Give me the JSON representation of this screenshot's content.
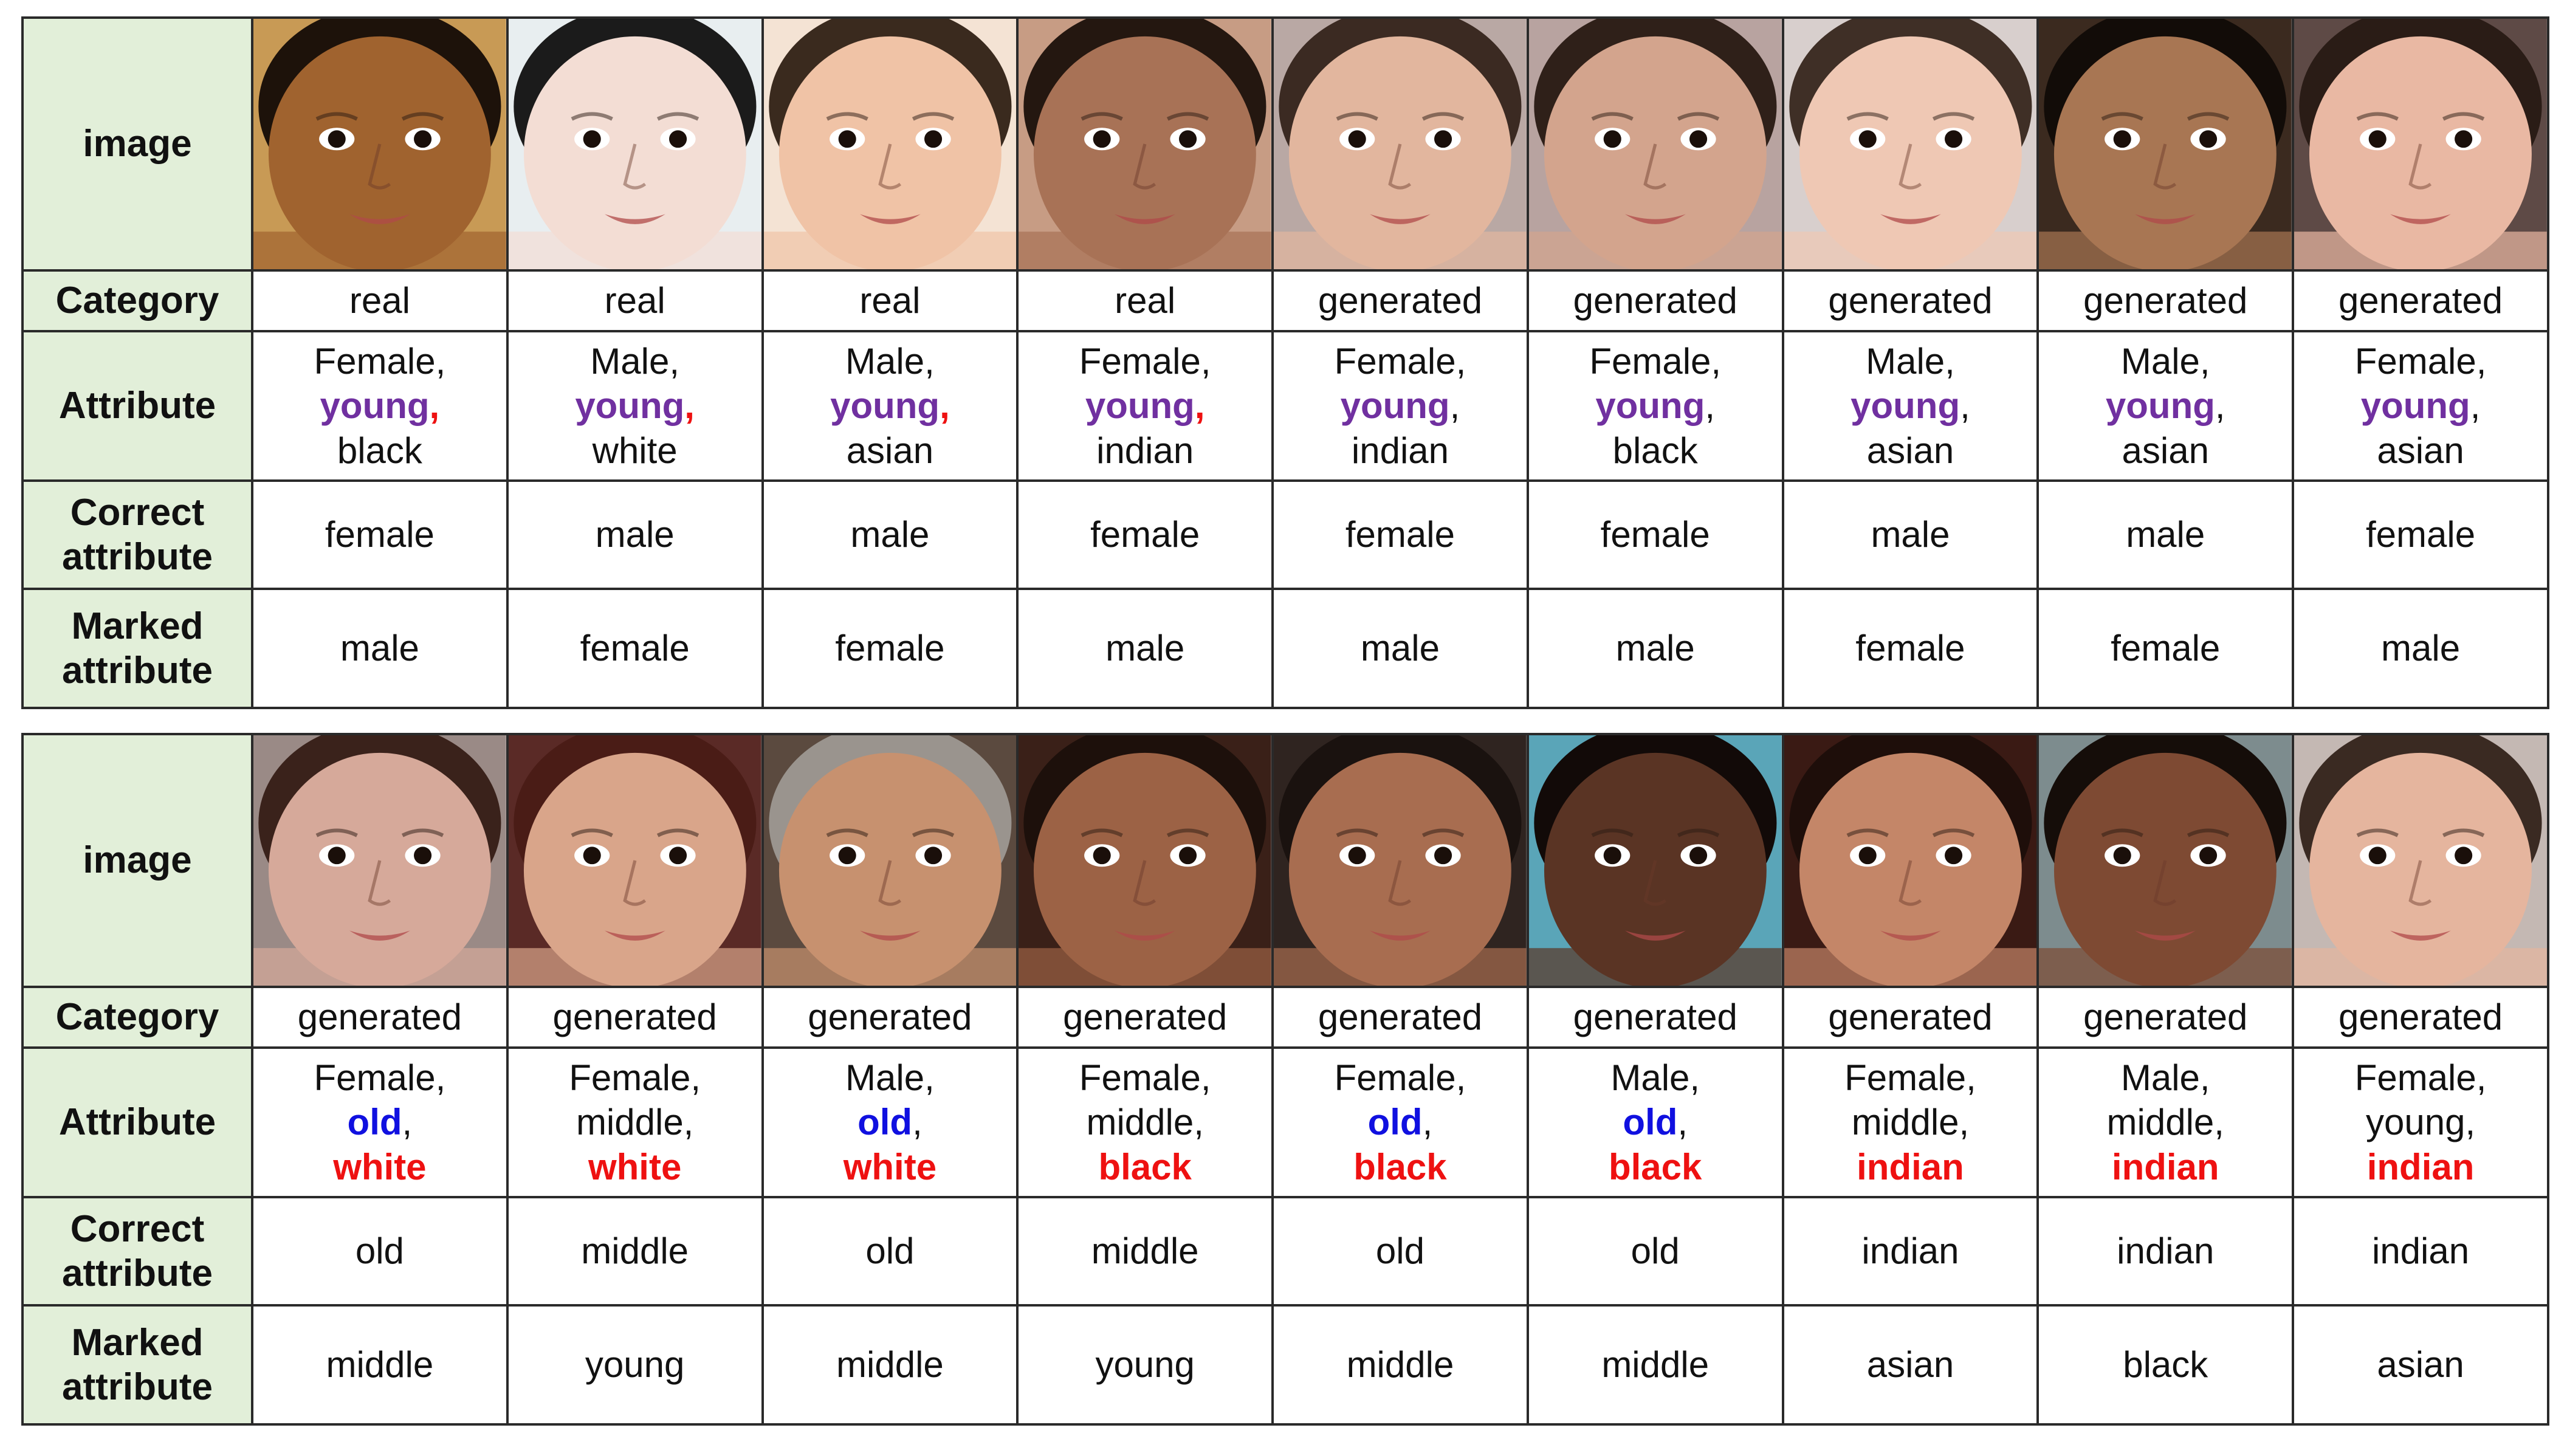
{
  "row_headers": {
    "image": "image",
    "category": "Category",
    "attribute": "Attribute",
    "correct": [
      "Correct",
      "attribute"
    ],
    "marked": [
      "Marked",
      "attribute"
    ]
  },
  "colors": {
    "header_bg": "#e2efd9",
    "purple": "#7030a0",
    "blue": "#1010e0",
    "red": "#ee1111"
  },
  "tables": [
    {
      "columns": [
        {
          "image": "face-photo",
          "skin": "#a0632f",
          "bg": "#c89a55",
          "hair": "#1d120a",
          "category": "real",
          "attribute": [
            {
              "text": "Female,",
              "style": "plain"
            },
            {
              "parts": [
                {
                  "text": "young",
                  "style": "purple"
                },
                {
                  "text": ",",
                  "style": "red"
                }
              ]
            },
            {
              "text": "black",
              "style": "plain"
            }
          ],
          "correct": "female",
          "marked": "male"
        },
        {
          "image": "face-photo",
          "skin": "#f3ddd4",
          "bg": "#e8eef0",
          "hair": "#1b1b1b",
          "category": "real",
          "attribute": [
            {
              "text": "Male,",
              "style": "plain"
            },
            {
              "parts": [
                {
                  "text": "young",
                  "style": "purple"
                },
                {
                  "text": ",",
                  "style": "red"
                }
              ]
            },
            {
              "text": "white",
              "style": "plain"
            }
          ],
          "correct": "male",
          "marked": "female"
        },
        {
          "image": "face-photo",
          "skin": "#f0c3a6",
          "bg": "#f4e3d4",
          "hair": "#3a2a1e",
          "category": "real",
          "attribute": [
            {
              "text": "Male,",
              "style": "plain"
            },
            {
              "parts": [
                {
                  "text": "young",
                  "style": "purple"
                },
                {
                  "text": ",",
                  "style": "red"
                }
              ]
            },
            {
              "text": "asian",
              "style": "plain"
            }
          ],
          "correct": "male",
          "marked": "female"
        },
        {
          "image": "face-photo",
          "skin": "#a87256",
          "bg": "#c79c84",
          "hair": "#241710",
          "category": "real",
          "attribute": [
            {
              "text": "Female,",
              "style": "plain"
            },
            {
              "parts": [
                {
                  "text": "young",
                  "style": "purple"
                },
                {
                  "text": ",",
                  "style": "red"
                }
              ]
            },
            {
              "text": "indian",
              "style": "plain"
            }
          ],
          "correct": "female",
          "marked": "male"
        },
        {
          "image": "face-photo",
          "skin": "#e2b69e",
          "bg": "#b9a8a4",
          "hair": "#3b2a22",
          "category": "generated",
          "attribute": [
            {
              "text": "Female,",
              "style": "plain"
            },
            {
              "parts": [
                {
                  "text": "young",
                  "style": "purple"
                },
                {
                  "text": ",",
                  "style": "plain"
                }
              ]
            },
            {
              "text": "indian",
              "style": "plain"
            }
          ],
          "correct": "female",
          "marked": "male"
        },
        {
          "image": "face-photo",
          "skin": "#d3a48d",
          "bg": "#b8a3a0",
          "hair": "#2f2019",
          "category": "generated",
          "attribute": [
            {
              "text": "Female,",
              "style": "plain"
            },
            {
              "parts": [
                {
                  "text": "young",
                  "style": "purple"
                },
                {
                  "text": ",",
                  "style": "plain"
                }
              ]
            },
            {
              "text": "black",
              "style": "plain"
            }
          ],
          "correct": "female",
          "marked": "male"
        },
        {
          "image": "face-photo",
          "skin": "#efc8b4",
          "bg": "#d8cfcd",
          "hair": "#3f2f26",
          "category": "generated",
          "attribute": [
            {
              "text": "Male,",
              "style": "plain"
            },
            {
              "parts": [
                {
                  "text": "young",
                  "style": "purple"
                },
                {
                  "text": ",",
                  "style": "plain"
                }
              ]
            },
            {
              "text": "asian",
              "style": "plain"
            }
          ],
          "correct": "male",
          "marked": "female"
        },
        {
          "image": "face-photo",
          "skin": "#a87653",
          "bg": "#3b2a1f",
          "hair": "#120c08",
          "category": "generated",
          "attribute": [
            {
              "text": "Male,",
              "style": "plain"
            },
            {
              "parts": [
                {
                  "text": "young",
                  "style": "purple"
                },
                {
                  "text": ",",
                  "style": "plain"
                }
              ]
            },
            {
              "text": "asian",
              "style": "plain"
            }
          ],
          "correct": "male",
          "marked": "female"
        },
        {
          "image": "face-photo",
          "skin": "#e9b8a3",
          "bg": "#5e4a46",
          "hair": "#2a1c16",
          "category": "generated",
          "attribute": [
            {
              "text": "Female,",
              "style": "plain"
            },
            {
              "parts": [
                {
                  "text": "young",
                  "style": "purple"
                },
                {
                  "text": ",",
                  "style": "plain"
                }
              ]
            },
            {
              "text": "asian",
              "style": "plain"
            }
          ],
          "correct": "female",
          "marked": "male"
        }
      ]
    },
    {
      "columns": [
        {
          "image": "face-photo",
          "skin": "#d6a99a",
          "bg": "#9a8a86",
          "hair": "#3a221b",
          "category": "generated",
          "attribute": [
            {
              "text": "Female,",
              "style": "plain"
            },
            {
              "parts": [
                {
                  "text": "old",
                  "style": "blue"
                },
                {
                  "text": ",",
                  "style": "plain"
                }
              ]
            },
            {
              "text": "white",
              "style": "red"
            }
          ],
          "correct": "old",
          "marked": "middle"
        },
        {
          "image": "face-photo",
          "skin": "#d9a58a",
          "bg": "#5a2a26",
          "hair": "#4a1c16",
          "category": "generated",
          "attribute": [
            {
              "text": "Female,",
              "style": "plain"
            },
            {
              "parts": [
                {
                  "text": "middle,",
                  "style": "plain"
                }
              ]
            },
            {
              "text": "white",
              "style": "red"
            }
          ],
          "correct": "middle",
          "marked": "young"
        },
        {
          "image": "face-photo",
          "skin": "#c7916f",
          "bg": "#5b4a3f",
          "hair": "#9a948e",
          "category": "generated",
          "attribute": [
            {
              "text": "Male,",
              "style": "plain"
            },
            {
              "parts": [
                {
                  "text": "old",
                  "style": "blue"
                },
                {
                  "text": ",",
                  "style": "plain"
                }
              ]
            },
            {
              "text": "white",
              "style": "red"
            }
          ],
          "correct": "old",
          "marked": "middle"
        },
        {
          "image": "face-photo",
          "skin": "#9c6245",
          "bg": "#3a2018",
          "hair": "#1d100b",
          "category": "generated",
          "attribute": [
            {
              "text": "Female,",
              "style": "plain"
            },
            {
              "parts": [
                {
                  "text": "middle,",
                  "style": "plain"
                }
              ]
            },
            {
              "text": "black",
              "style": "red"
            }
          ],
          "correct": "middle",
          "marked": "young"
        },
        {
          "image": "face-photo",
          "skin": "#a86d50",
          "bg": "#2f2420",
          "hair": "#1a120f",
          "category": "generated",
          "attribute": [
            {
              "text": "Female,",
              "style": "plain"
            },
            {
              "parts": [
                {
                  "text": "old",
                  "style": "blue"
                },
                {
                  "text": ",",
                  "style": "plain"
                }
              ]
            },
            {
              "text": "black",
              "style": "red"
            }
          ],
          "correct": "old",
          "marked": "middle"
        },
        {
          "image": "face-photo",
          "skin": "#5a3424",
          "bg": "#5aa5b8",
          "hair": "#120a08",
          "category": "generated",
          "attribute": [
            {
              "text": "Male,",
              "style": "plain"
            },
            {
              "parts": [
                {
                  "text": "old",
                  "style": "blue"
                },
                {
                  "text": ",",
                  "style": "plain"
                }
              ]
            },
            {
              "text": "black",
              "style": "red"
            }
          ],
          "correct": "old",
          "marked": "middle"
        },
        {
          "image": "face-photo",
          "skin": "#c48668",
          "bg": "#3a1a14",
          "hair": "#1e0e0a",
          "category": "generated",
          "attribute": [
            {
              "text": "Female,",
              "style": "plain"
            },
            {
              "parts": [
                {
                  "text": "middle,",
                  "style": "plain"
                }
              ]
            },
            {
              "text": "indian",
              "style": "red"
            }
          ],
          "correct": "indian",
          "marked": "asian"
        },
        {
          "image": "face-photo",
          "skin": "#7e4a33",
          "bg": "#7d8c8e",
          "hair": "#150d09",
          "category": "generated",
          "attribute": [
            {
              "text": "Male,",
              "style": "plain"
            },
            {
              "parts": [
                {
                  "text": "middle,",
                  "style": "plain"
                }
              ]
            },
            {
              "text": "indian",
              "style": "red"
            }
          ],
          "correct": "indian",
          "marked": "black"
        },
        {
          "image": "face-photo",
          "skin": "#e5b59e",
          "bg": "#c4b8b3",
          "hair": "#3a2a22",
          "category": "generated",
          "attribute": [
            {
              "text": "Female,",
              "style": "plain"
            },
            {
              "parts": [
                {
                  "text": "young,",
                  "style": "plain"
                }
              ]
            },
            {
              "text": "indian",
              "style": "red"
            }
          ],
          "correct": "indian",
          "marked": "asian"
        }
      ]
    }
  ]
}
